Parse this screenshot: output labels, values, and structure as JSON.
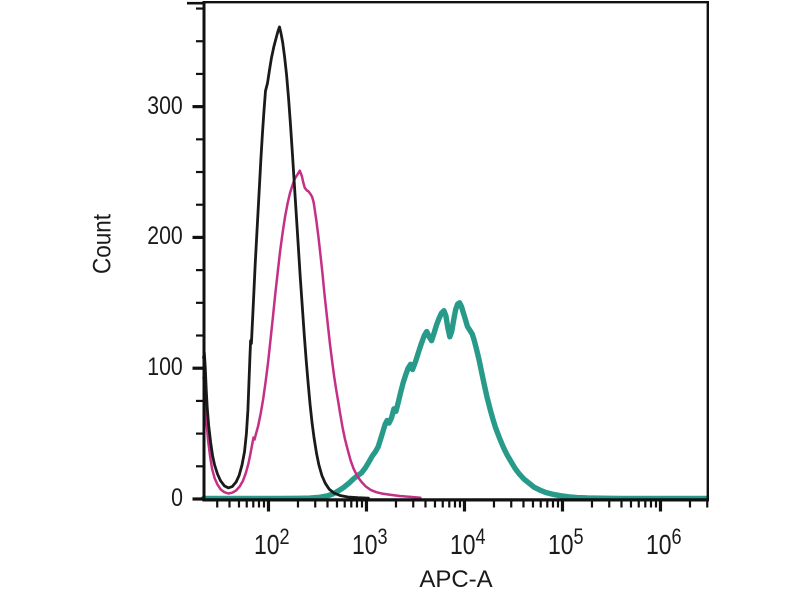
{
  "chart_data": {
    "type": "line",
    "subtype": "flow-cytometry-histogram-overlay",
    "title": "",
    "xlabel": "APC-A",
    "ylabel": "Count",
    "x_scale": "log10",
    "x_range_log": [
      1.337,
      6.49
    ],
    "y_range": [
      0,
      380
    ],
    "grid": false,
    "legend": null,
    "x_ticks": [
      {
        "base": "10",
        "exp": "2",
        "log": 2
      },
      {
        "base": "10",
        "exp": "3",
        "log": 3
      },
      {
        "base": "10",
        "exp": "4",
        "log": 4
      },
      {
        "base": "10",
        "exp": "5",
        "log": 5
      },
      {
        "base": "10",
        "exp": "6",
        "log": 6
      }
    ],
    "x_minor_ticks": "logarithmic, 2-9 per decade",
    "y_ticks": [
      {
        "label": "0",
        "value": 0
      },
      {
        "label": "100",
        "value": 100
      },
      {
        "label": "200",
        "value": 200
      },
      {
        "label": "300",
        "value": 300
      }
    ],
    "y_minor_tick_step": 25,
    "series": [
      {
        "name": "teal-curve",
        "color": "#289a8a",
        "stroke_width": 5.4,
        "points": [
          [
            1.337,
            0.35
          ],
          [
            1.6,
            0.35
          ],
          [
            1.85,
            0.4
          ],
          [
            2.1,
            0.4
          ],
          [
            2.3,
            0.5
          ],
          [
            2.42,
            0.7
          ],
          [
            2.52,
            1.3
          ],
          [
            2.6,
            2.4
          ],
          [
            2.66,
            4
          ],
          [
            2.72,
            6.5
          ],
          [
            2.77,
            9
          ],
          [
            2.82,
            12
          ],
          [
            2.87,
            15.5
          ],
          [
            2.91,
            18
          ],
          [
            2.95,
            20
          ],
          [
            2.99,
            24
          ],
          [
            3.03,
            29
          ],
          [
            3.06,
            33
          ],
          [
            3.09,
            36
          ],
          [
            3.12,
            40
          ],
          [
            3.145,
            46
          ],
          [
            3.17,
            52
          ],
          [
            3.19,
            57
          ],
          [
            3.21,
            60
          ],
          [
            3.23,
            58
          ],
          [
            3.255,
            62
          ],
          [
            3.28,
            69
          ],
          [
            3.3,
            67
          ],
          [
            3.325,
            74
          ],
          [
            3.35,
            82
          ],
          [
            3.375,
            89
          ],
          [
            3.4,
            95
          ],
          [
            3.425,
            100
          ],
          [
            3.45,
            103
          ],
          [
            3.47,
            99
          ],
          [
            3.5,
            105
          ],
          [
            3.53,
            112
          ],
          [
            3.56,
            119
          ],
          [
            3.59,
            125
          ],
          [
            3.615,
            128
          ],
          [
            3.64,
            124
          ],
          [
            3.665,
            121
          ],
          [
            3.69,
            127
          ],
          [
            3.715,
            133
          ],
          [
            3.74,
            138
          ],
          [
            3.765,
            142
          ],
          [
            3.79,
            144
          ],
          [
            3.81,
            140
          ],
          [
            3.83,
            131
          ],
          [
            3.85,
            124
          ],
          [
            3.87,
            128
          ],
          [
            3.89,
            137
          ],
          [
            3.91,
            145
          ],
          [
            3.93,
            149
          ],
          [
            3.95,
            150
          ],
          [
            3.97,
            147
          ],
          [
            3.99,
            142
          ],
          [
            4.01,
            137
          ],
          [
            4.03,
            132
          ],
          [
            4.055,
            129
          ],
          [
            4.08,
            126
          ],
          [
            4.1,
            121
          ],
          [
            4.125,
            114
          ],
          [
            4.15,
            106
          ],
          [
            4.175,
            97
          ],
          [
            4.2,
            88
          ],
          [
            4.23,
            78
          ],
          [
            4.26,
            69
          ],
          [
            4.29,
            61
          ],
          [
            4.32,
            54
          ],
          [
            4.36,
            46
          ],
          [
            4.4,
            39
          ],
          [
            4.44,
            33
          ],
          [
            4.48,
            28
          ],
          [
            4.52,
            23
          ],
          [
            4.56,
            19
          ],
          [
            4.61,
            15
          ],
          [
            4.66,
            12
          ],
          [
            4.71,
            9
          ],
          [
            4.77,
            6.8
          ],
          [
            4.83,
            5
          ],
          [
            4.9,
            3.6
          ],
          [
            4.98,
            2.5
          ],
          [
            5.06,
            1.7
          ],
          [
            5.15,
            1.1
          ],
          [
            5.26,
            0.8
          ],
          [
            5.4,
            0.6
          ],
          [
            5.6,
            0.45
          ],
          [
            5.9,
            0.4
          ],
          [
            6.2,
            0.4
          ],
          [
            6.47,
            0.4
          ]
        ]
      },
      {
        "name": "magenta-curve",
        "color": "#c43086",
        "stroke_width": 2.5,
        "points": [
          [
            1.337,
            93
          ],
          [
            1.345,
            88
          ],
          [
            1.357,
            72
          ],
          [
            1.37,
            57
          ],
          [
            1.385,
            44
          ],
          [
            1.405,
            32
          ],
          [
            1.425,
            23
          ],
          [
            1.45,
            16
          ],
          [
            1.48,
            11
          ],
          [
            1.51,
            7.5
          ],
          [
            1.55,
            5.2
          ],
          [
            1.59,
            4.2
          ],
          [
            1.63,
            4.8
          ],
          [
            1.67,
            6.5
          ],
          [
            1.705,
            9.5
          ],
          [
            1.74,
            14
          ],
          [
            1.77,
            20
          ],
          [
            1.795,
            27
          ],
          [
            1.815,
            34
          ],
          [
            1.832,
            41
          ],
          [
            1.847,
            47
          ],
          [
            1.858,
            45.5
          ],
          [
            1.87,
            49
          ],
          [
            1.895,
            56
          ],
          [
            1.92,
            65
          ],
          [
            1.945,
            76
          ],
          [
            1.97,
            89
          ],
          [
            1.995,
            104
          ],
          [
            2.02,
            121
          ],
          [
            2.045,
            139
          ],
          [
            2.07,
            157
          ],
          [
            2.095,
            174
          ],
          [
            2.12,
            190
          ],
          [
            2.145,
            204
          ],
          [
            2.17,
            216
          ],
          [
            2.195,
            226
          ],
          [
            2.22,
            234
          ],
          [
            2.245,
            240
          ],
          [
            2.27,
            245
          ],
          [
            2.295,
            248
          ],
          [
            2.32,
            251
          ],
          [
            2.34,
            247
          ],
          [
            2.355,
            242
          ],
          [
            2.37,
            238
          ],
          [
            2.39,
            236
          ],
          [
            2.41,
            235
          ],
          [
            2.43,
            233
          ],
          [
            2.445,
            231
          ],
          [
            2.46,
            227
          ],
          [
            2.475,
            220
          ],
          [
            2.49,
            212
          ],
          [
            2.51,
            200
          ],
          [
            2.53,
            187
          ],
          [
            2.55,
            173
          ],
          [
            2.57,
            158
          ],
          [
            2.59,
            144
          ],
          [
            2.61,
            130
          ],
          [
            2.63,
            117
          ],
          [
            2.65,
            105
          ],
          [
            2.67,
            94
          ],
          [
            2.69,
            84
          ],
          [
            2.71,
            75
          ],
          [
            2.73,
            66
          ],
          [
            2.755,
            55
          ],
          [
            2.78,
            46
          ],
          [
            2.81,
            37
          ],
          [
            2.84,
            29
          ],
          [
            2.87,
            23
          ],
          [
            2.91,
            17
          ],
          [
            2.95,
            13
          ],
          [
            2.99,
            9.8
          ],
          [
            3.04,
            7
          ],
          [
            3.1,
            5.2
          ],
          [
            3.17,
            4
          ],
          [
            3.25,
            3.1
          ],
          [
            3.34,
            2.3
          ],
          [
            3.45,
            1.6
          ],
          [
            3.55,
            1
          ]
        ]
      },
      {
        "name": "black-curve",
        "color": "#1a1a1a",
        "stroke_width": 2.8,
        "points": [
          [
            1.337,
            108
          ],
          [
            1.345,
            112
          ],
          [
            1.355,
            100
          ],
          [
            1.365,
            84
          ],
          [
            1.375,
            70
          ],
          [
            1.39,
            56
          ],
          [
            1.41,
            43
          ],
          [
            1.43,
            33
          ],
          [
            1.45,
            26
          ],
          [
            1.48,
            19
          ],
          [
            1.51,
            14
          ],
          [
            1.55,
            10
          ],
          [
            1.59,
            8.5
          ],
          [
            1.63,
            9.5
          ],
          [
            1.67,
            13
          ],
          [
            1.7,
            18
          ],
          [
            1.73,
            26
          ],
          [
            1.755,
            36
          ],
          [
            1.775,
            50
          ],
          [
            1.79,
            68
          ],
          [
            1.8,
            88
          ],
          [
            1.81,
            108
          ],
          [
            1.818,
            121
          ],
          [
            1.826,
            119
          ],
          [
            1.833,
            130
          ],
          [
            1.842,
            144
          ],
          [
            1.852,
            160
          ],
          [
            1.864,
            178
          ],
          [
            1.878,
            198
          ],
          [
            1.893,
            219
          ],
          [
            1.908,
            240
          ],
          [
            1.923,
            260
          ],
          [
            1.938,
            279
          ],
          [
            1.953,
            296
          ],
          [
            1.97,
            312
          ],
          [
            1.99,
            318
          ],
          [
            2.01,
            328
          ],
          [
            2.03,
            337
          ],
          [
            2.055,
            346
          ],
          [
            2.08,
            353
          ],
          [
            2.098,
            358
          ],
          [
            2.113,
            361
          ],
          [
            2.128,
            356
          ],
          [
            2.145,
            349
          ],
          [
            2.165,
            338
          ],
          [
            2.185,
            324
          ],
          [
            2.205,
            306
          ],
          [
            2.225,
            286
          ],
          [
            2.245,
            263
          ],
          [
            2.265,
            240
          ],
          [
            2.285,
            216
          ],
          [
            2.305,
            192
          ],
          [
            2.325,
            169
          ],
          [
            2.345,
            147
          ],
          [
            2.365,
            126
          ],
          [
            2.385,
            106
          ],
          [
            2.405,
            88
          ],
          [
            2.425,
            72
          ],
          [
            2.445,
            58
          ],
          [
            2.465,
            47
          ],
          [
            2.49,
            35
          ],
          [
            2.515,
            26
          ],
          [
            2.545,
            18
          ],
          [
            2.58,
            12
          ],
          [
            2.62,
            7.5
          ],
          [
            2.67,
            4.5
          ],
          [
            2.73,
            2.7
          ],
          [
            2.81,
            1.5
          ],
          [
            2.91,
            1
          ],
          [
            3.02,
            0.7
          ]
        ]
      }
    ]
  },
  "axis_color": "#111111",
  "text_color": "#1a1a1a"
}
